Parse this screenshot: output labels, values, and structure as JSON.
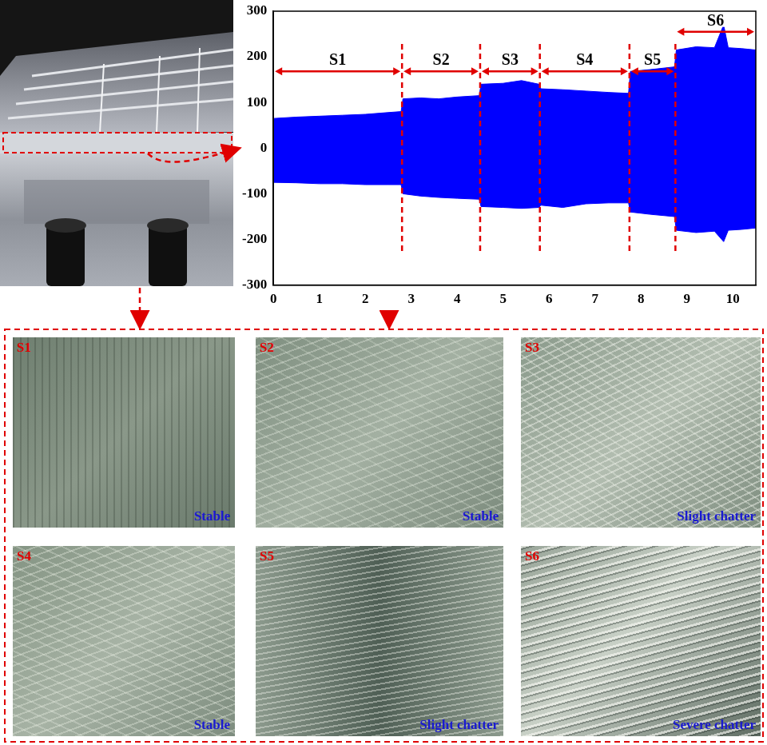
{
  "chart_data": {
    "type": "line",
    "x": [
      0,
      0.5,
      1,
      1.5,
      2,
      2.5,
      2.78,
      2.82,
      3.2,
      3.6,
      4.0,
      4.48,
      4.52,
      5.0,
      5.4,
      5.78,
      5.82,
      6.3,
      6.8,
      7.3,
      7.73,
      7.77,
      8.2,
      8.73,
      8.77,
      9.2,
      9.6,
      9.8,
      9.9,
      10.2,
      10.5
    ],
    "series": [
      {
        "color": "#0000ff",
        "values": [
          65,
          68,
          70,
          72,
          74,
          78,
          80,
          108,
          110,
          108,
          112,
          115,
          140,
          142,
          148,
          140,
          130,
          128,
          125,
          122,
          120,
          168,
          172,
          178,
          215,
          222,
          220,
          270,
          220,
          218,
          215
        ]
      },
      {
        "color": "#0000ff",
        "values": [
          -75,
          -76,
          -78,
          -78,
          -80,
          -80,
          -80,
          -100,
          -105,
          -108,
          -110,
          -112,
          -128,
          -130,
          -132,
          -130,
          -125,
          -130,
          -122,
          -120,
          -120,
          -140,
          -145,
          -150,
          -180,
          -185,
          -182,
          -205,
          -180,
          -178,
          -175
        ]
      }
    ],
    "xlim": [
      0,
      10.5
    ],
    "xticks": [
      0,
      1,
      2,
      3,
      4,
      5,
      6,
      7,
      8,
      9,
      10
    ],
    "ylim": [
      -300,
      300
    ],
    "yticks": [
      -300,
      -200,
      -100,
      0,
      100,
      200,
      300
    ],
    "grid": false,
    "segments": [
      {
        "label": "S1",
        "start": 0,
        "end": 2.8
      },
      {
        "label": "S2",
        "start": 2.8,
        "end": 4.5
      },
      {
        "label": "S3",
        "start": 4.5,
        "end": 5.8
      },
      {
        "label": "S4",
        "start": 5.8,
        "end": 7.75
      },
      {
        "label": "S5",
        "start": 7.75,
        "end": 8.75
      },
      {
        "label": "S6",
        "start": 8.75,
        "end": 10.5
      }
    ]
  },
  "surfaces": [
    {
      "label": "S1",
      "state": "Stable"
    },
    {
      "label": "S2",
      "state": "Stable"
    },
    {
      "label": "S3",
      "state": "Slight chatter"
    },
    {
      "label": "S4",
      "state": "Stable"
    },
    {
      "label": "S5",
      "state": "Slight chatter"
    },
    {
      "label": "S6",
      "state": "Severe chatter"
    }
  ]
}
